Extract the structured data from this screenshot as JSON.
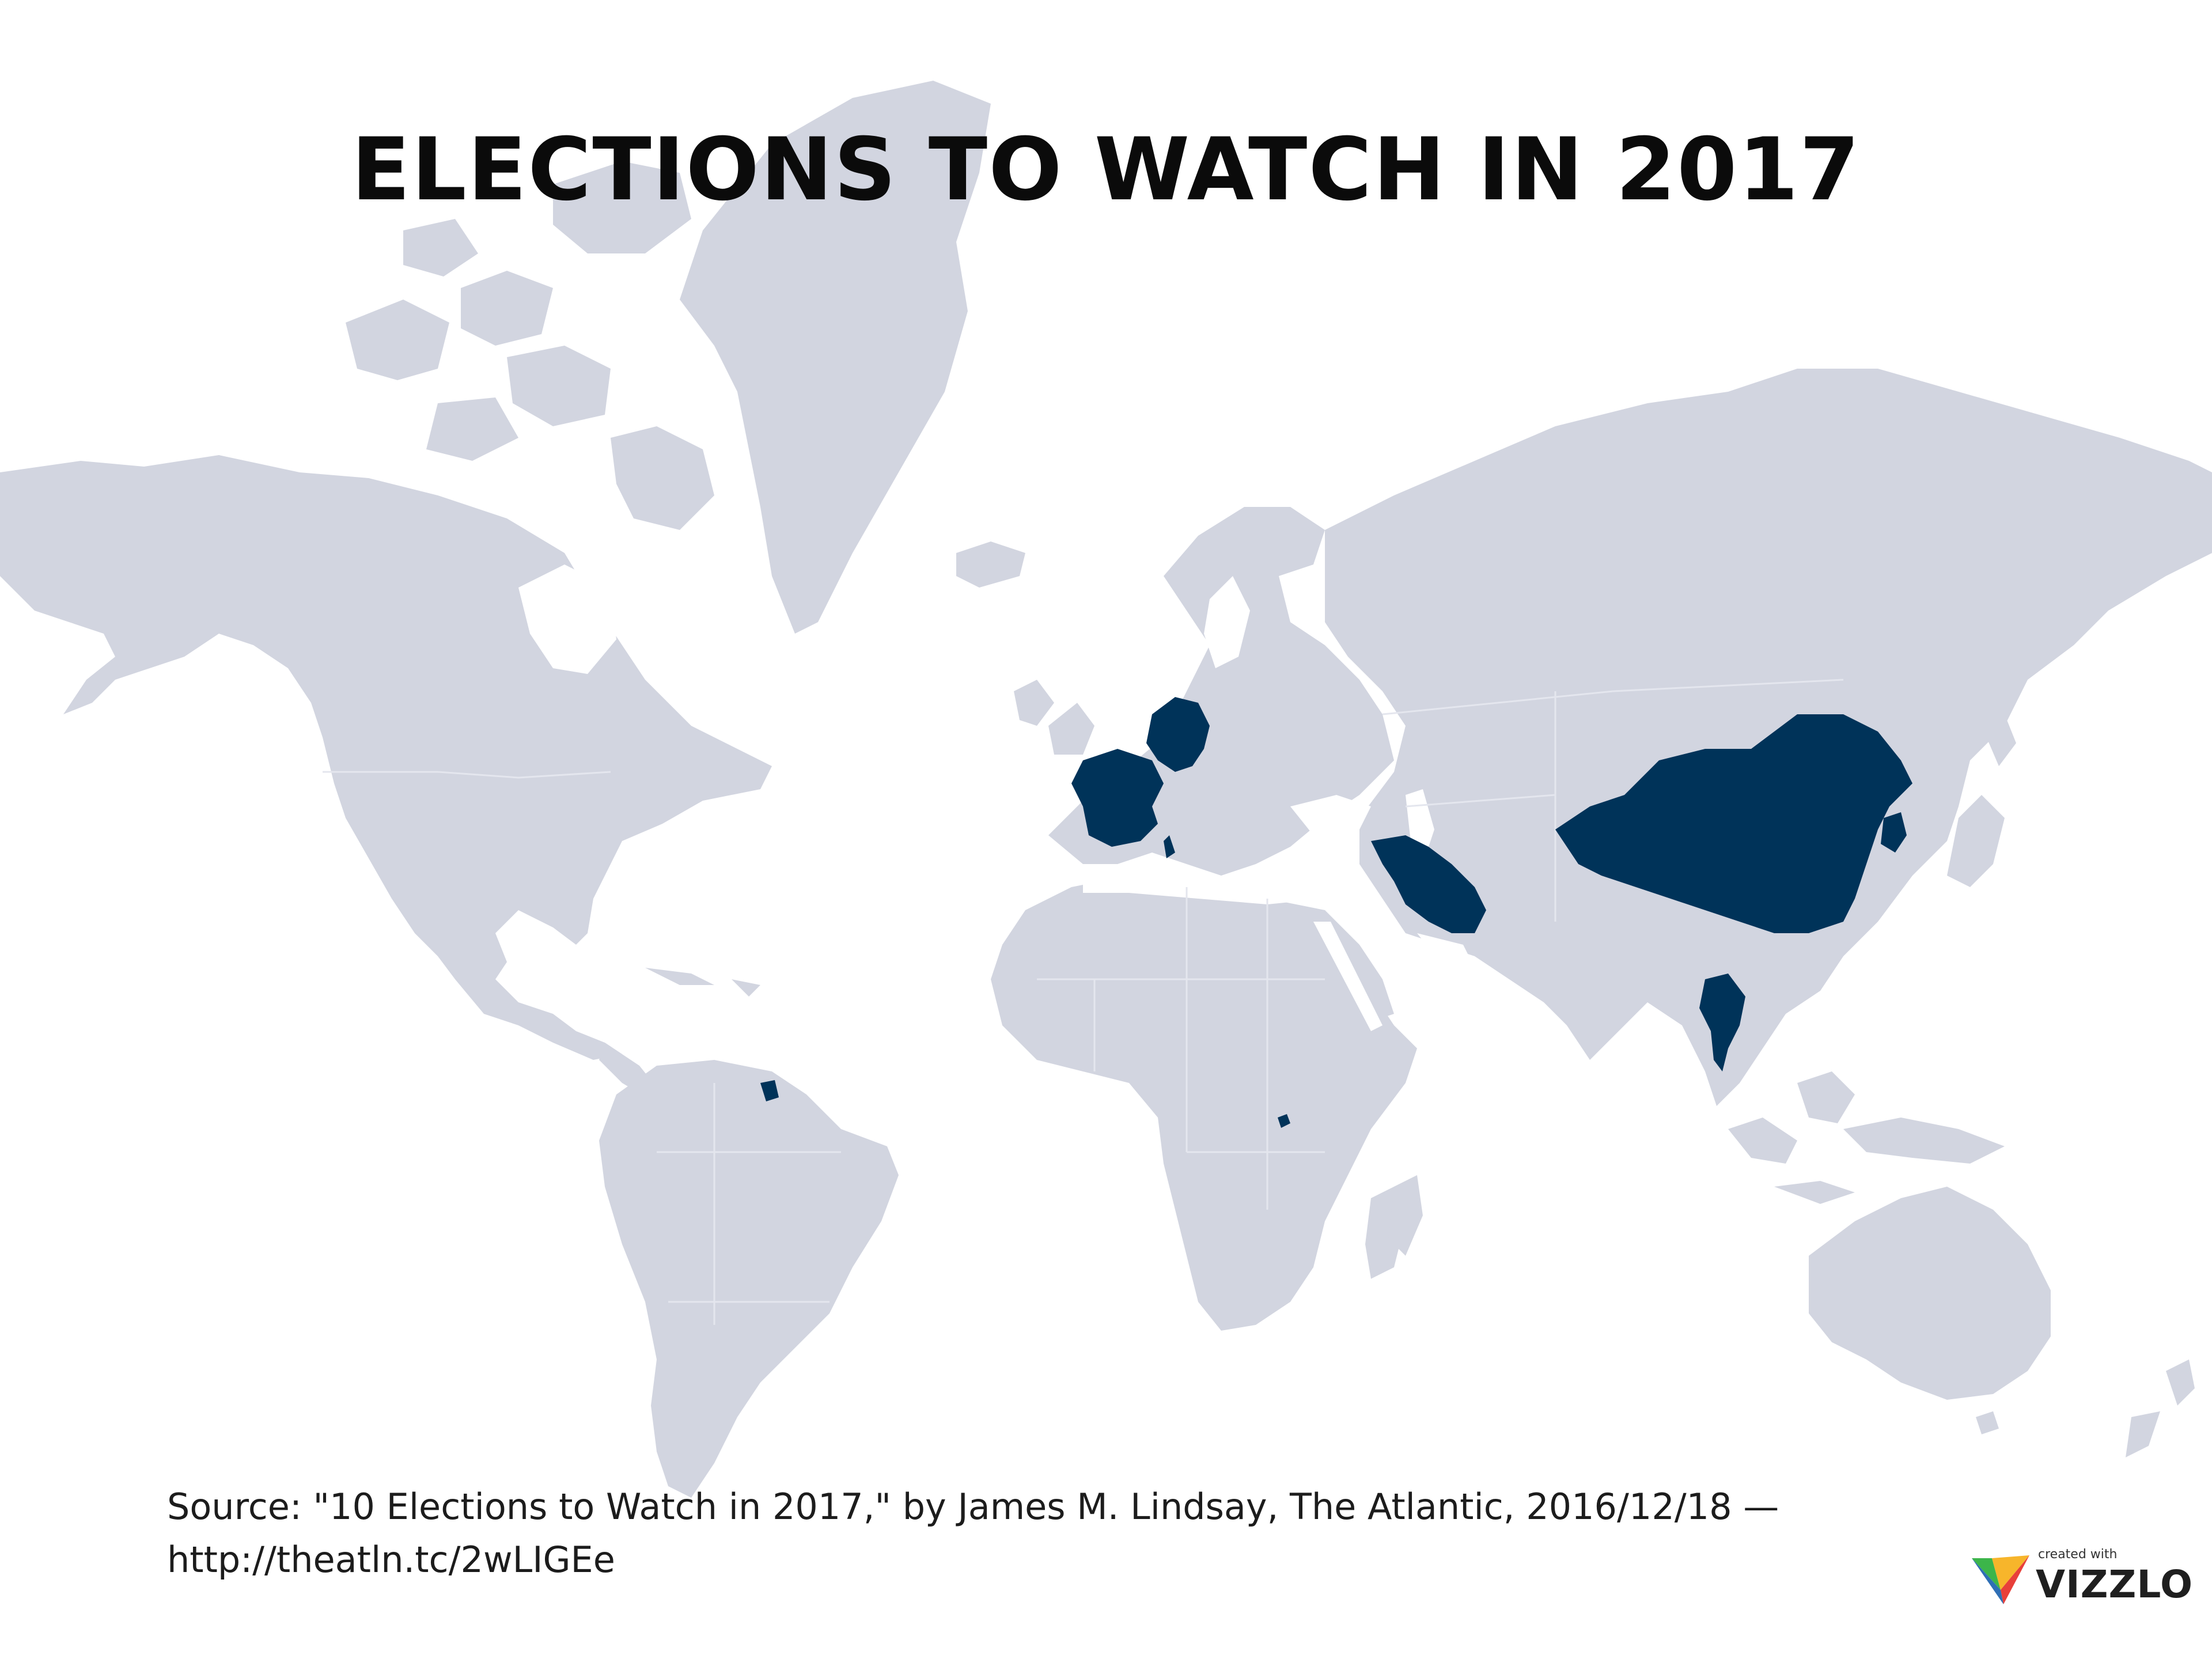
{
  "title": "ELECTIONS TO WATCH IN 2017",
  "source": {
    "line1": "Source: \"10 Elections to Watch in 2017,\" by James M. Lindsay, The Atlantic, 2016/12/18 —",
    "line2": "http://theatln.tc/2wLIGEe"
  },
  "branding": {
    "created_with": "created with",
    "name": "VIZZLO"
  },
  "colors": {
    "land": "#d2d5e0",
    "highlight": "#003359",
    "background": "#ffffff"
  },
  "highlighted_countries": [
    "Germany",
    "France",
    "Iran",
    "China",
    "South Korea",
    "Thailand",
    "Rwanda",
    "French Guiana"
  ]
}
